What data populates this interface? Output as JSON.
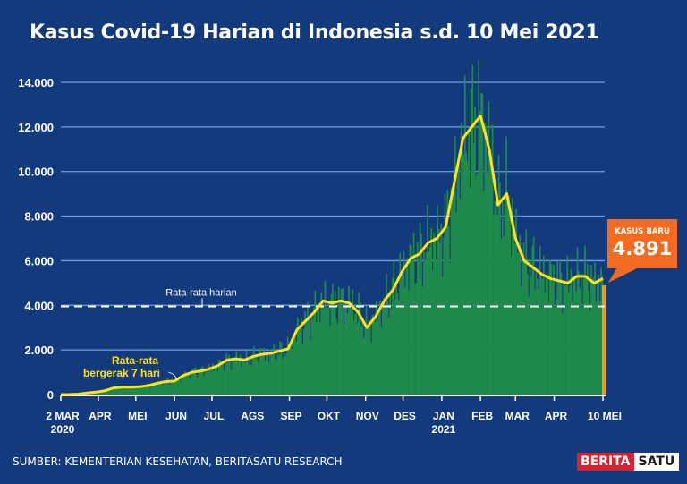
{
  "title": "Kasus Covid-19 Harian di Indonesia s.d. 10 Mei 2021",
  "source": "SUMBER: KEMENTERIAN KESEHATAN, BERITASATU RESEARCH",
  "logo": {
    "part1": "BERITA",
    "part2": "SATU"
  },
  "callout": {
    "label": "KASUS BARU",
    "value": "4.891"
  },
  "colors": {
    "bg": "#133a7c",
    "bar": "#1f8a4c",
    "line": "#ffe21a",
    "highlight": "#f7941d",
    "callout": "#f26b21",
    "grid": "#6fa0e0"
  },
  "chart_data": {
    "type": "bar",
    "title": "Kasus Covid-19 Harian di Indonesia s.d. 10 Mei 2021",
    "ylim": [
      0,
      14000
    ],
    "yticks": [
      0,
      2000,
      4000,
      6000,
      8000,
      10000,
      12000,
      14000
    ],
    "ytick_labels": [
      "0",
      "2.000",
      "4.000",
      "6.000",
      "8.000",
      "10.000",
      "12.000",
      "14.000"
    ],
    "xlim_days": [
      0,
      434
    ],
    "xticks": [
      {
        "day": 0,
        "label": "2 MAR",
        "sub": "2020"
      },
      {
        "day": 30,
        "label": "APR"
      },
      {
        "day": 60,
        "label": "MEI"
      },
      {
        "day": 91,
        "label": "JUN"
      },
      {
        "day": 121,
        "label": "JUL"
      },
      {
        "day": 152,
        "label": "AGS"
      },
      {
        "day": 183,
        "label": "SEP"
      },
      {
        "day": 213,
        "label": "OKT"
      },
      {
        "day": 244,
        "label": "NOV"
      },
      {
        "day": 274,
        "label": "DES"
      },
      {
        "day": 305,
        "label": "JAN",
        "sub": "2021"
      },
      {
        "day": 336,
        "label": "FEB"
      },
      {
        "day": 364,
        "label": "MAR"
      },
      {
        "day": 395,
        "label": "APR"
      },
      {
        "day": 434,
        "label": "10 MEI"
      }
    ],
    "moving_average_7d": {
      "label": "Rata-rata bergerak 7 hari",
      "label_line1": "Rata-rata",
      "label_line2": "bergerak 7 hari",
      "step_days": 7,
      "values": [
        0,
        5,
        20,
        70,
        110,
        170,
        290,
        330,
        330,
        350,
        400,
        500,
        580,
        600,
        850,
        1000,
        1050,
        1150,
        1300,
        1550,
        1600,
        1550,
        1700,
        1800,
        1850,
        1950,
        2050,
        2900,
        3300,
        3700,
        4200,
        4100,
        4200,
        4100,
        3700,
        3000,
        3500,
        4200,
        4700,
        5500,
        6100,
        6300,
        6800,
        7000,
        7500,
        9500,
        11500,
        12000,
        12500,
        11000,
        8500,
        9000,
        7000,
        6000,
        5700,
        5400,
        5200,
        5100,
        5000,
        5300,
        5300,
        5000
      ],
      "last": {
        "day": 434,
        "value": 5200
      }
    },
    "daily_average": {
      "label": "Rata-rata harian",
      "value": 3950
    },
    "last_value": {
      "day": 434,
      "value": 4891
    }
  }
}
